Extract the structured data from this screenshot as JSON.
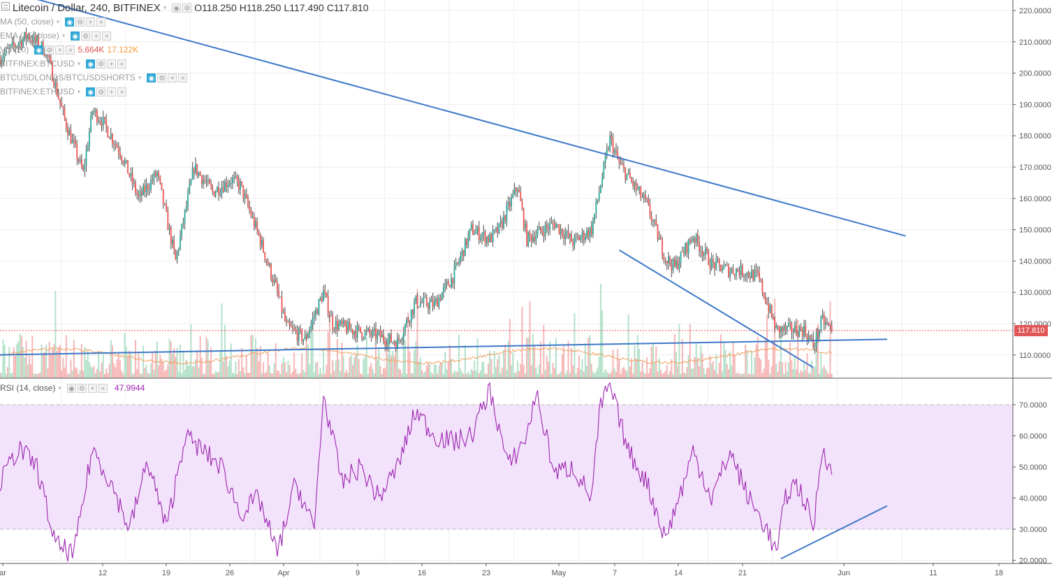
{
  "header": {
    "symbol": "Litecoin / Dollar, 240, BITFINEX",
    "open": "O118.250",
    "high": "H118.250",
    "low": "L117.490",
    "close": "C117.810"
  },
  "studies": [
    {
      "label": "MA (50, close)"
    },
    {
      "label": "EMA (15, close)"
    },
    {
      "label": "Vol (20)",
      "value_a": "5.664K",
      "value_b": "17.122K"
    },
    {
      "label": "BITFINEX:BTCUSD"
    },
    {
      "label": "BTCUSDLONGS/BTCUSDSHORTS"
    },
    {
      "label": "BITFINEX:ETHUSD"
    }
  ],
  "price_axis": {
    "ticks": [
      "220.0000",
      "210.0000",
      "200.0000",
      "190.0000",
      "180.0000",
      "170.0000",
      "160.0000",
      "150.0000",
      "140.0000",
      "130.0000",
      "120.0000",
      "110.0000"
    ],
    "last_price": "117.810"
  },
  "rsi": {
    "label": "RSI (14, close)",
    "value": "47.9944",
    "ticks": [
      "70.0000",
      "60.0000",
      "50.0000",
      "40.0000",
      "30.0000",
      "20.0000"
    ],
    "band_color": "#f3e2fb",
    "line_color": "#9c27b0"
  },
  "time_axis": {
    "labels": [
      "ar",
      "12",
      "19",
      "26",
      "Apr",
      "9",
      "16",
      "23",
      "May",
      "7",
      "14",
      "21",
      "Jun",
      "11",
      "18"
    ]
  },
  "colors": {
    "up": "#26a69a",
    "down": "#ef5350",
    "candle_wick": "#4a4a4a",
    "trendline": "#3d78c8",
    "volume_up": "#a6dcc0",
    "volume_down": "#f5a9a9",
    "last_price_line": "#e05656"
  },
  "chart_data": [
    {
      "type": "candlestick",
      "title": "Litecoin / Dollar, 240, BITFINEX",
      "ylim": [
        100,
        222
      ],
      "x_range_days": [
        0,
        98
      ],
      "last_close": 117.81,
      "anchors": [
        {
          "day": 0,
          "price": 205
        },
        {
          "day": 3,
          "price": 212
        },
        {
          "day": 5,
          "price": 207
        },
        {
          "day": 7,
          "price": 185
        },
        {
          "day": 9,
          "price": 168
        },
        {
          "day": 10,
          "price": 188
        },
        {
          "day": 11,
          "price": 185
        },
        {
          "day": 13,
          "price": 175
        },
        {
          "day": 15,
          "price": 160
        },
        {
          "day": 17,
          "price": 168
        },
        {
          "day": 19,
          "price": 140
        },
        {
          "day": 21,
          "price": 170
        },
        {
          "day": 23,
          "price": 162
        },
        {
          "day": 25,
          "price": 166
        },
        {
          "day": 26,
          "price": 164
        },
        {
          "day": 28,
          "price": 148
        },
        {
          "day": 30,
          "price": 130
        },
        {
          "day": 31,
          "price": 119
        },
        {
          "day": 33,
          "price": 115
        },
        {
          "day": 35,
          "price": 130
        },
        {
          "day": 36,
          "price": 120
        },
        {
          "day": 38,
          "price": 118
        },
        {
          "day": 41,
          "price": 116
        },
        {
          "day": 43,
          "price": 114
        },
        {
          "day": 45,
          "price": 127
        },
        {
          "day": 47,
          "price": 126
        },
        {
          "day": 49,
          "price": 135
        },
        {
          "day": 51,
          "price": 150
        },
        {
          "day": 53,
          "price": 147
        },
        {
          "day": 54,
          "price": 150
        },
        {
          "day": 56,
          "price": 164
        },
        {
          "day": 57,
          "price": 147
        },
        {
          "day": 60,
          "price": 152
        },
        {
          "day": 62,
          "price": 146
        },
        {
          "day": 64,
          "price": 150
        },
        {
          "day": 66,
          "price": 179
        },
        {
          "day": 67,
          "price": 171
        },
        {
          "day": 70,
          "price": 158
        },
        {
          "day": 72,
          "price": 141
        },
        {
          "day": 73,
          "price": 138
        },
        {
          "day": 75,
          "price": 148
        },
        {
          "day": 77,
          "price": 139
        },
        {
          "day": 79,
          "price": 137
        },
        {
          "day": 80,
          "price": 137
        },
        {
          "day": 82,
          "price": 135
        },
        {
          "day": 84,
          "price": 118
        },
        {
          "day": 86,
          "price": 118
        },
        {
          "day": 87,
          "price": 118
        },
        {
          "day": 88,
          "price": 113
        },
        {
          "day": 89,
          "price": 121
        },
        {
          "day": 90,
          "price": 118
        }
      ],
      "trendlines": [
        {
          "name": "upper",
          "points": [
            [
              -4,
              230
            ],
            [
              98,
              148
            ]
          ]
        },
        {
          "name": "lower",
          "points": [
            [
              67,
              143.5
            ],
            [
              88,
              106
            ]
          ]
        },
        {
          "name": "support",
          "points": [
            [
              -1,
              110
            ],
            [
              96,
              115
            ]
          ]
        }
      ]
    },
    {
      "type": "line",
      "title": "RSI (14, close)",
      "ylim": [
        17,
        78
      ],
      "bands": [
        30,
        70
      ],
      "last_value": 47.9944,
      "anchors": [
        {
          "day": 0,
          "value": 45
        },
        {
          "day": 2,
          "value": 56
        },
        {
          "day": 4,
          "value": 50
        },
        {
          "day": 6,
          "value": 25
        },
        {
          "day": 8,
          "value": 22
        },
        {
          "day": 10,
          "value": 56
        },
        {
          "day": 12,
          "value": 45
        },
        {
          "day": 14,
          "value": 30
        },
        {
          "day": 16,
          "value": 52
        },
        {
          "day": 18,
          "value": 30
        },
        {
          "day": 20,
          "value": 60
        },
        {
          "day": 22,
          "value": 55
        },
        {
          "day": 24,
          "value": 50
        },
        {
          "day": 26,
          "value": 35
        },
        {
          "day": 28,
          "value": 40
        },
        {
          "day": 30,
          "value": 22
        },
        {
          "day": 32,
          "value": 45
        },
        {
          "day": 34,
          "value": 30
        },
        {
          "day": 35,
          "value": 73
        },
        {
          "day": 37,
          "value": 45
        },
        {
          "day": 39,
          "value": 50
        },
        {
          "day": 41,
          "value": 40
        },
        {
          "day": 43,
          "value": 50
        },
        {
          "day": 45,
          "value": 68
        },
        {
          "day": 47,
          "value": 60
        },
        {
          "day": 49,
          "value": 58
        },
        {
          "day": 51,
          "value": 60
        },
        {
          "day": 53,
          "value": 75
        },
        {
          "day": 55,
          "value": 50
        },
        {
          "day": 57,
          "value": 60
        },
        {
          "day": 58,
          "value": 74
        },
        {
          "day": 60,
          "value": 48
        },
        {
          "day": 62,
          "value": 50
        },
        {
          "day": 64,
          "value": 40
        },
        {
          "day": 65,
          "value": 70
        },
        {
          "day": 66,
          "value": 76
        },
        {
          "day": 68,
          "value": 55
        },
        {
          "day": 70,
          "value": 45
        },
        {
          "day": 72,
          "value": 27
        },
        {
          "day": 74,
          "value": 45
        },
        {
          "day": 75,
          "value": 55
        },
        {
          "day": 77,
          "value": 40
        },
        {
          "day": 79,
          "value": 55
        },
        {
          "day": 81,
          "value": 40
        },
        {
          "day": 83,
          "value": 30
        },
        {
          "day": 84,
          "value": 22
        },
        {
          "day": 85,
          "value": 40
        },
        {
          "day": 86,
          "value": 45
        },
        {
          "day": 87,
          "value": 40
        },
        {
          "day": 88,
          "value": 30
        },
        {
          "day": 89,
          "value": 57
        },
        {
          "day": 90,
          "value": 48
        }
      ],
      "trendlines": [
        {
          "name": "rsi-support",
          "points": [
            [
              84.5,
              20.5
            ],
            [
              96,
              37.5
            ]
          ]
        }
      ]
    }
  ]
}
